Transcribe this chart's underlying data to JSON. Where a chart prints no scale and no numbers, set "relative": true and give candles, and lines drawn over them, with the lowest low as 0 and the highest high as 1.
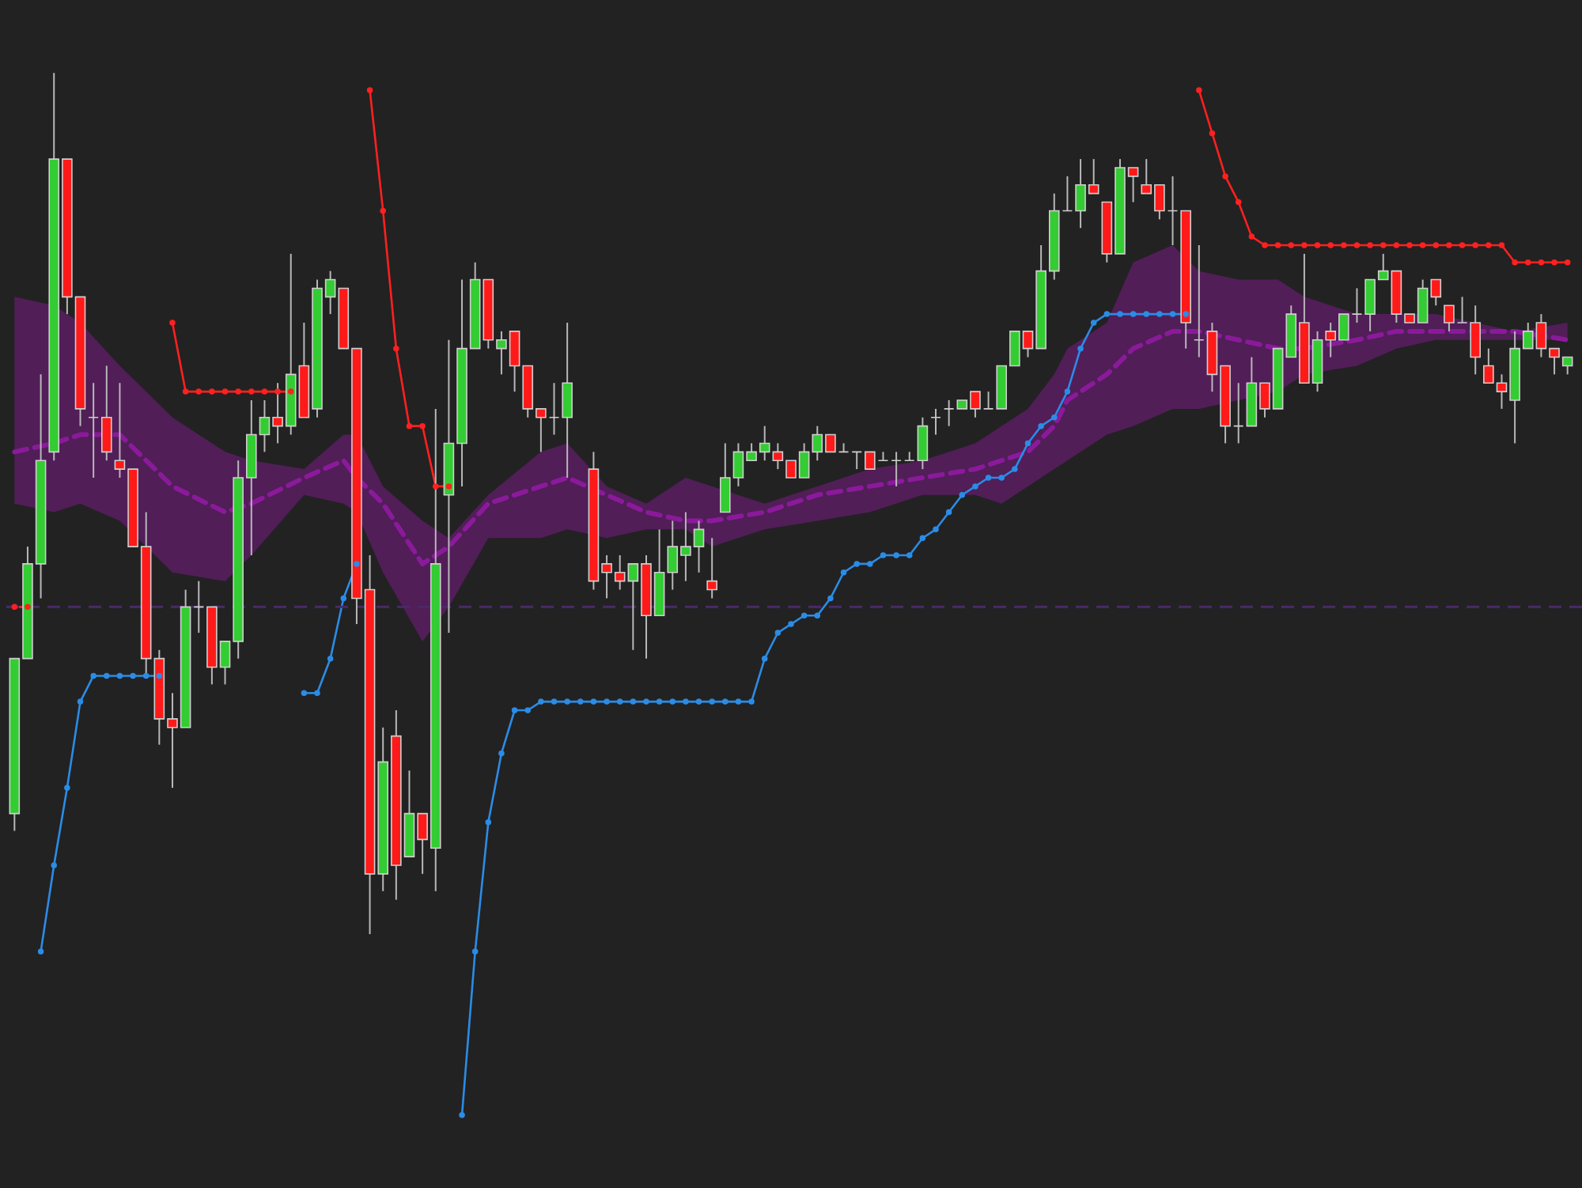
{
  "chart_data": {
    "type": "candlestick",
    "relative": true,
    "categories": [
      null,
      null,
      null,
      null,
      null,
      null,
      null,
      null,
      null,
      null,
      null,
      null,
      null,
      null,
      null,
      null,
      null,
      null,
      null,
      null,
      null,
      null,
      null,
      null,
      null,
      null,
      null,
      null,
      null,
      null,
      null,
      null,
      null,
      null,
      null,
      null,
      null,
      null,
      null,
      null,
      null,
      null,
      null,
      null,
      null,
      null,
      null,
      null,
      null,
      null,
      null,
      null,
      null,
      null,
      null,
      null,
      null,
      null,
      null,
      null,
      null,
      null,
      null,
      null,
      null,
      null,
      null,
      null,
      null,
      null,
      null,
      null,
      null,
      null,
      null,
      null,
      null,
      null,
      null,
      null,
      null,
      null,
      null,
      null,
      null,
      null,
      null,
      null,
      null,
      null,
      null,
      null,
      null,
      null,
      null,
      null,
      null,
      null,
      null,
      null,
      null,
      null,
      null,
      null,
      null,
      null,
      null,
      null,
      null,
      null,
      null,
      null,
      null,
      null,
      null,
      null,
      null,
      null,
      null
    ],
    "ohlc": [
      [
        0.14,
        0.32,
        0.12,
        0.32
      ],
      [
        0.32,
        0.45,
        0.32,
        0.43
      ],
      [
        0.43,
        0.65,
        0.39,
        0.55
      ],
      [
        0.56,
        1.0,
        0.55,
        0.9
      ],
      [
        0.9,
        0.9,
        0.72,
        0.74
      ],
      [
        0.74,
        0.74,
        0.59,
        0.61
      ],
      [
        0.6,
        0.64,
        0.53,
        0.6
      ],
      [
        0.6,
        0.66,
        0.55,
        0.56
      ],
      [
        0.55,
        0.64,
        0.53,
        0.54
      ],
      [
        0.54,
        0.54,
        0.45,
        0.45
      ],
      [
        0.45,
        0.49,
        0.3,
        0.32
      ],
      [
        0.32,
        0.33,
        0.22,
        0.25
      ],
      [
        0.25,
        0.28,
        0.17,
        0.24
      ],
      [
        0.24,
        0.4,
        0.24,
        0.38
      ],
      [
        0.38,
        0.41,
        0.35,
        0.38
      ],
      [
        0.38,
        0.38,
        0.29,
        0.31
      ],
      [
        0.31,
        0.34,
        0.29,
        0.34
      ],
      [
        0.34,
        0.55,
        0.32,
        0.53
      ],
      [
        0.53,
        0.62,
        0.44,
        0.58
      ],
      [
        0.58,
        0.62,
        0.56,
        0.6
      ],
      [
        0.6,
        0.64,
        0.57,
        0.59
      ],
      [
        0.59,
        0.79,
        0.58,
        0.65
      ],
      [
        0.66,
        0.71,
        0.6,
        0.6
      ],
      [
        0.61,
        0.76,
        0.6,
        0.75
      ],
      [
        0.74,
        0.77,
        0.72,
        0.76
      ],
      [
        0.75,
        0.75,
        0.68,
        0.68
      ],
      [
        0.68,
        0.68,
        0.36,
        0.39
      ],
      [
        0.4,
        0.44,
        0,
        0.07
      ],
      [
        0.07,
        0.24,
        0.05,
        0.2
      ],
      [
        0.23,
        0.26,
        0.04,
        0.08
      ],
      [
        0.09,
        0.19,
        0.09,
        0.14
      ],
      [
        0.14,
        0.14,
        0.07,
        0.11
      ],
      [
        0.1,
        0.61,
        0.05,
        0.43
      ],
      [
        0.51,
        0.69,
        0.35,
        0.57
      ],
      [
        0.57,
        0.76,
        0.52,
        0.68
      ],
      [
        0.68,
        0.78,
        0.68,
        0.76
      ],
      [
        0.76,
        0.76,
        0.68,
        0.69
      ],
      [
        0.68,
        0.7,
        0.65,
        0.69
      ],
      [
        0.7,
        0.7,
        0.63,
        0.66
      ],
      [
        0.66,
        0.66,
        0.6,
        0.61
      ],
      [
        0.61,
        0.61,
        0.56,
        0.6
      ],
      [
        0.6,
        0.64,
        0.58,
        0.6
      ],
      [
        0.6,
        0.71,
        0.53,
        0.64
      ],
      null,
      [
        0.54,
        0.56,
        0.4,
        0.41
      ],
      [
        0.43,
        0.44,
        0.39,
        0.42
      ],
      [
        0.42,
        0.44,
        0.4,
        0.41
      ],
      [
        0.41,
        0.43,
        0.33,
        0.43
      ],
      [
        0.43,
        0.44,
        0.32,
        0.37
      ],
      [
        0.37,
        0.47,
        0.37,
        0.42
      ],
      [
        0.42,
        0.48,
        0.4,
        0.45
      ],
      [
        0.44,
        0.49,
        0.41,
        0.45
      ],
      [
        0.45,
        0.48,
        0.42,
        0.47
      ],
      [
        0.41,
        0.46,
        0.39,
        0.4
      ],
      [
        0.49,
        0.57,
        0.49,
        0.53
      ],
      [
        0.53,
        0.57,
        0.52,
        0.56
      ],
      [
        0.55,
        0.57,
        0.55,
        0.56
      ],
      [
        0.56,
        0.59,
        0.55,
        0.57
      ],
      [
        0.56,
        0.57,
        0.54,
        0.55
      ],
      [
        0.55,
        0.55,
        0.53,
        0.53
      ],
      [
        0.53,
        0.57,
        0.53,
        0.56
      ],
      [
        0.56,
        0.59,
        0.55,
        0.58
      ],
      [
        0.58,
        0.58,
        0.56,
        0.56
      ],
      [
        0.56,
        0.57,
        0.56,
        0.56
      ],
      [
        0.56,
        0.56,
        0.54,
        0.56
      ],
      [
        0.56,
        0.56,
        0.54,
        0.54
      ],
      [
        0.55,
        0.56,
        0.55,
        0.55
      ],
      [
        0.55,
        0.56,
        0.52,
        0.55
      ],
      [
        0.55,
        0.56,
        0.55,
        0.55
      ],
      [
        0.55,
        0.6,
        0.54,
        0.59
      ],
      [
        0.6,
        0.61,
        0.58,
        0.6
      ],
      [
        0.61,
        0.62,
        0.59,
        0.61
      ],
      [
        0.61,
        0.62,
        0.61,
        0.62
      ],
      [
        0.63,
        0.63,
        0.6,
        0.61
      ],
      [
        0.61,
        0.63,
        0.61,
        0.61
      ],
      [
        0.61,
        0.66,
        0.61,
        0.66
      ],
      [
        0.66,
        0.7,
        0.66,
        0.7
      ],
      [
        0.7,
        0.7,
        0.67,
        0.68
      ],
      [
        0.68,
        0.8,
        0.68,
        0.77
      ],
      [
        0.77,
        0.86,
        0.76,
        0.84
      ],
      [
        0.84,
        0.88,
        0.84,
        0.84
      ],
      [
        0.84,
        0.9,
        0.82,
        0.87
      ],
      [
        0.87,
        0.9,
        0.86,
        0.86
      ],
      [
        0.85,
        0.85,
        0.78,
        0.79
      ],
      [
        0.79,
        0.9,
        0.79,
        0.89
      ],
      [
        0.89,
        0.89,
        0.85,
        0.88
      ],
      [
        0.87,
        0.9,
        0.86,
        0.86
      ],
      [
        0.87,
        0.87,
        0.83,
        0.84
      ],
      [
        0.84,
        0.88,
        0.8,
        0.84
      ],
      [
        0.84,
        0.84,
        0.68,
        0.71
      ],
      [
        0.69,
        0.8,
        0.67,
        0.69
      ],
      [
        0.7,
        0.71,
        0.63,
        0.65
      ],
      [
        0.66,
        0.66,
        0.57,
        0.59
      ],
      [
        0.59,
        0.64,
        0.57,
        0.59
      ],
      [
        0.59,
        0.67,
        0.59,
        0.64
      ],
      [
        0.64,
        0.64,
        0.6,
        0.61
      ],
      [
        0.61,
        0.68,
        0.61,
        0.68
      ],
      [
        0.67,
        0.73,
        0.67,
        0.72
      ],
      [
        0.71,
        0.79,
        0.64,
        0.64
      ],
      [
        0.64,
        0.7,
        0.63,
        0.69
      ],
      [
        0.7,
        0.71,
        0.67,
        0.69
      ],
      [
        0.69,
        0.72,
        0.69,
        0.72
      ],
      [
        0.72,
        0.75,
        0.71,
        0.72
      ],
      [
        0.72,
        0.76,
        0.7,
        0.76
      ],
      [
        0.76,
        0.79,
        0.76,
        0.77
      ],
      [
        0.77,
        0.77,
        0.71,
        0.72
      ],
      [
        0.72,
        0.72,
        0.71,
        0.71
      ],
      [
        0.71,
        0.76,
        0.71,
        0.75
      ],
      [
        0.76,
        0.76,
        0.73,
        0.74
      ],
      [
        0.73,
        0.73,
        0.7,
        0.71
      ],
      [
        0.71,
        0.74,
        0.71,
        0.71
      ],
      [
        0.71,
        0.73,
        0.65,
        0.67
      ],
      [
        0.66,
        0.68,
        0.64,
        0.64
      ],
      [
        0.64,
        0.65,
        0.61,
        0.63
      ],
      [
        0.62,
        0.7,
        0.57,
        0.68
      ],
      [
        0.68,
        0.71,
        0.68,
        0.7
      ],
      [
        0.71,
        0.72,
        0.67,
        0.68
      ],
      [
        0.68,
        0.68,
        0.65,
        0.67
      ],
      [
        0.66,
        0.67,
        0.65,
        0.67
      ]
    ],
    "series": [
      {
        "type": "line",
        "color": "#8b1a9b",
        "line_style": "dashed",
        "marker": "none",
        "values": [
          0.56,
          null,
          null,
          0.57,
          null,
          0.58,
          null,
          null,
          0.58,
          null,
          0.55,
          null,
          0.52,
          null,
          null,
          null,
          0.49,
          null,
          0.5,
          null,
          null,
          null,
          0.53,
          null,
          null,
          0.55,
          0.53,
          null,
          0.5,
          null,
          null,
          0.43,
          null,
          0.45,
          null,
          null,
          0.5,
          null,
          null,
          null,
          0.52,
          null,
          0.53,
          null,
          null,
          0.51,
          null,
          null,
          0.49,
          null,
          null,
          0.48,
          null,
          0.48,
          null,
          null,
          null,
          0.49,
          null,
          null,
          null,
          0.51,
          null,
          null,
          null,
          0.52,
          null,
          null,
          null,
          0.53,
          null,
          null,
          null,
          0.54,
          null,
          0.55,
          null,
          0.56,
          null,
          0.59,
          0.62,
          null,
          null,
          0.65,
          null,
          0.68,
          null,
          null,
          0.7,
          null,
          0.7,
          null,
          null,
          0.69,
          null,
          null,
          0.68,
          null,
          0.68,
          null,
          null,
          null,
          0.69,
          null,
          null,
          0.7,
          null,
          null,
          0.7,
          null,
          null,
          0.7,
          null,
          null,
          0.7,
          null,
          null,
          null,
          0.69
        ],
        "lower": [
          0.5,
          null,
          null,
          0.49,
          null,
          0.5,
          null,
          null,
          0.48,
          null,
          0.45,
          null,
          0.42,
          null,
          null,
          null,
          0.41,
          null,
          0.44,
          null,
          null,
          null,
          0.51,
          null,
          null,
          0.5,
          0.49,
          null,
          0.42,
          null,
          null,
          0.34,
          null,
          0.38,
          null,
          null,
          0.46,
          null,
          null,
          null,
          0.46,
          null,
          0.47,
          null,
          null,
          0.46,
          null,
          null,
          0.47,
          null,
          null,
          0.47,
          null,
          0.45,
          null,
          null,
          null,
          0.47,
          null,
          null,
          null,
          0.48,
          null,
          null,
          null,
          0.49,
          null,
          null,
          null,
          0.51,
          null,
          null,
          null,
          0.51,
          null,
          0.5,
          null,
          0.52,
          null,
          0.54,
          0.55,
          null,
          null,
          0.58,
          null,
          0.59,
          null,
          null,
          0.61,
          null,
          0.61,
          null,
          null,
          0.62,
          null,
          null,
          0.63,
          null,
          0.65,
          null,
          null,
          null,
          0.66,
          null,
          null,
          0.68,
          null,
          null,
          0.69,
          null,
          null,
          0.69,
          null,
          null,
          0.69,
          null,
          null,
          null,
          0.69
        ],
        "upper": [
          0.74,
          null,
          null,
          0.73,
          null,
          0.71,
          null,
          null,
          0.66,
          null,
          0.63,
          null,
          0.6,
          null,
          null,
          null,
          0.56,
          null,
          0.55,
          null,
          null,
          null,
          0.54,
          null,
          null,
          0.58,
          0.58,
          null,
          0.52,
          null,
          null,
          0.48,
          null,
          0.46,
          null,
          null,
          0.51,
          null,
          null,
          null,
          0.56,
          null,
          0.57,
          null,
          null,
          0.52,
          null,
          null,
          0.5,
          null,
          null,
          0.53,
          null,
          0.52,
          null,
          null,
          null,
          0.5,
          null,
          null,
          null,
          0.52,
          null,
          null,
          null,
          0.54,
          null,
          null,
          null,
          0.55,
          null,
          null,
          null,
          0.57,
          null,
          0.59,
          null,
          0.61,
          null,
          0.65,
          0.68,
          null,
          null,
          0.71,
          null,
          0.78,
          null,
          null,
          0.8,
          null,
          0.77,
          null,
          null,
          0.76,
          null,
          null,
          0.76,
          null,
          0.74,
          null,
          null,
          null,
          0.72,
          null,
          null,
          0.72,
          null,
          null,
          0.72,
          null,
          null,
          0.71,
          null,
          null,
          0.7,
          null,
          null,
          null,
          0.71
        ]
      },
      {
        "type": "line",
        "color": "#ff2020",
        "marker": "circle",
        "values": [
          0.38,
          0.38,
          null,
          null,
          null,
          null,
          null,
          null,
          null,
          null,
          null,
          null,
          null,
          null,
          null,
          null,
          null,
          null,
          null,
          null,
          null,
          null,
          null,
          null,
          null,
          null,
          null,
          null,
          null,
          null,
          null,
          null,
          null,
          null,
          null,
          null,
          null,
          null,
          null,
          null,
          null,
          null,
          null,
          null,
          null,
          null,
          null,
          null,
          null,
          null,
          null,
          null,
          null,
          null,
          null,
          null,
          null,
          null,
          null,
          null,
          null,
          null,
          null,
          null,
          null,
          null,
          null,
          null,
          null,
          null,
          null,
          null,
          null,
          null,
          null,
          null,
          null,
          null,
          null,
          null,
          null,
          null,
          null,
          null,
          null,
          null,
          null,
          null,
          null,
          null,
          null,
          null,
          null,
          null,
          null,
          null,
          null,
          null,
          null,
          null,
          null,
          null,
          null,
          null,
          null,
          null,
          null,
          null,
          null,
          null,
          null,
          null,
          null,
          null,
          null,
          null,
          null,
          null,
          null
        ]
      },
      {
        "type": "line",
        "color": "#ff2020",
        "marker": "circle",
        "values": [
          null,
          null,
          null,
          null,
          null,
          null,
          null,
          null,
          null,
          null,
          null,
          null,
          0.71,
          0.63,
          0.63,
          0.63,
          0.63,
          0.63,
          0.63,
          0.63,
          0.63,
          0.63,
          null,
          null,
          null,
          null,
          null,
          null,
          null,
          null,
          null,
          null,
          null,
          null,
          null,
          null,
          null,
          null,
          null,
          null,
          null,
          null,
          null,
          null,
          null,
          null,
          null,
          null,
          null,
          null,
          null,
          null,
          null,
          null,
          null,
          null,
          null,
          null,
          null,
          null,
          null,
          null,
          null,
          null,
          null,
          null,
          null,
          null,
          null,
          null,
          null,
          null,
          null,
          null,
          null,
          null,
          null,
          null,
          null,
          null,
          null,
          null,
          null,
          null,
          null,
          null,
          null,
          null,
          null,
          null,
          null,
          null,
          null,
          null,
          null,
          null,
          null,
          null,
          null,
          null,
          null,
          null,
          null,
          null,
          null,
          null,
          null,
          null,
          null,
          null,
          null,
          null,
          null,
          null,
          null,
          null,
          null,
          null,
          null
        ]
      },
      {
        "type": "line",
        "color": "#ff2020",
        "marker": "circle",
        "values": [
          null,
          null,
          null,
          null,
          null,
          null,
          null,
          null,
          null,
          null,
          null,
          null,
          null,
          null,
          null,
          null,
          null,
          null,
          null,
          null,
          null,
          null,
          null,
          null,
          null,
          null,
          null,
          0.98,
          0.84,
          0.68,
          0.59,
          0.59,
          0.52,
          0.52,
          null,
          null,
          null,
          null,
          null,
          null,
          null,
          null,
          null,
          null,
          null,
          null,
          null,
          null,
          null,
          null,
          null,
          null,
          null,
          null,
          null,
          null,
          null,
          null,
          null,
          null,
          null,
          null,
          null,
          null,
          null,
          null,
          null,
          null,
          null,
          null,
          null,
          null,
          null,
          null,
          null,
          null,
          null,
          null,
          null,
          null,
          null,
          null,
          null,
          null,
          null,
          null,
          null,
          null,
          null,
          null,
          null,
          null,
          null,
          null,
          null,
          null,
          null,
          null,
          null,
          null,
          null,
          null,
          null,
          null,
          null,
          null,
          null,
          null,
          null,
          null,
          null,
          null,
          null,
          null,
          null,
          null,
          null,
          null,
          null
        ]
      },
      {
        "type": "line",
        "color": "#ff2020",
        "marker": "circle",
        "values": [
          null,
          null,
          null,
          null,
          null,
          null,
          null,
          null,
          null,
          null,
          null,
          null,
          null,
          null,
          null,
          null,
          null,
          null,
          null,
          null,
          null,
          null,
          null,
          null,
          null,
          null,
          null,
          null,
          null,
          null,
          null,
          null,
          null,
          null,
          null,
          null,
          null,
          null,
          null,
          null,
          null,
          null,
          null,
          null,
          null,
          null,
          null,
          null,
          null,
          null,
          null,
          null,
          null,
          null,
          null,
          null,
          null,
          null,
          null,
          null,
          null,
          null,
          null,
          null,
          null,
          null,
          null,
          null,
          null,
          null,
          null,
          null,
          null,
          null,
          null,
          null,
          null,
          null,
          null,
          null,
          null,
          null,
          null,
          null,
          null,
          null,
          null,
          null,
          null,
          null,
          0.98,
          0.93,
          0.88,
          0.85,
          0.81,
          0.8,
          0.8,
          0.8,
          0.8,
          0.8,
          0.8,
          0.8,
          0.8,
          0.8,
          0.8,
          0.8,
          0.8,
          0.8,
          0.8,
          0.8,
          0.8,
          0.8,
          0.8,
          0.8,
          0.78,
          0.78,
          0.78,
          0.78,
          0.78
        ]
      },
      {
        "type": "line",
        "color": "#2b8ce6",
        "marker": "circle",
        "values": [
          null,
          null,
          -0.02,
          0.08,
          0.17,
          0.27,
          0.3,
          0.3,
          0.3,
          0.3,
          0.3,
          0.3,
          null,
          null,
          null,
          null,
          null,
          null,
          null,
          null,
          null,
          null,
          null,
          null,
          null,
          null,
          null,
          null,
          null,
          null,
          null,
          null,
          null,
          null,
          null,
          null,
          null,
          null,
          null,
          null,
          null,
          null,
          null,
          null,
          null,
          null,
          null,
          null,
          null,
          null,
          null,
          null,
          null,
          null,
          null,
          null,
          null,
          null,
          null,
          null,
          null,
          null,
          null,
          null,
          null,
          null,
          null,
          null,
          null,
          null,
          null,
          null,
          null,
          null,
          null,
          null,
          null,
          null,
          null,
          null,
          null,
          null,
          null,
          null,
          null,
          null,
          null,
          null,
          null,
          null,
          null,
          null,
          null,
          null,
          null,
          null,
          null,
          null,
          null,
          null,
          null,
          null,
          null,
          null,
          null,
          null,
          null,
          null,
          null,
          null,
          null,
          null,
          null,
          null,
          null,
          null,
          null,
          null,
          null
        ]
      },
      {
        "type": "line",
        "color": "#2b8ce6",
        "marker": "circle",
        "values": [
          null,
          null,
          null,
          null,
          null,
          null,
          null,
          null,
          null,
          null,
          null,
          null,
          null,
          null,
          null,
          null,
          null,
          null,
          null,
          null,
          null,
          null,
          0.28,
          0.28,
          0.32,
          0.39,
          0.43,
          null,
          null,
          null,
          null,
          null,
          null,
          null,
          null,
          null,
          null,
          null,
          null,
          null,
          null,
          null,
          null,
          null,
          null,
          null,
          null,
          null,
          null,
          null,
          null,
          null,
          null,
          null,
          null,
          null,
          null,
          null,
          null,
          null,
          null,
          null,
          null,
          null,
          null,
          null,
          null,
          null,
          null,
          null,
          null,
          null,
          null,
          null,
          null,
          null,
          null,
          null,
          null,
          null,
          null,
          null,
          null,
          null,
          null,
          null,
          null,
          null,
          null,
          null,
          null,
          null,
          null,
          null,
          null,
          null,
          null,
          null,
          null,
          null,
          null,
          null,
          null,
          null,
          null,
          null,
          null,
          null,
          null,
          null,
          null,
          null,
          null,
          null,
          null,
          null,
          null,
          null,
          null
        ]
      },
      {
        "type": "line",
        "color": "#2b8ce6",
        "marker": "circle",
        "values": [
          null,
          null,
          null,
          null,
          null,
          null,
          null,
          null,
          null,
          null,
          null,
          null,
          null,
          null,
          null,
          null,
          null,
          null,
          null,
          null,
          null,
          null,
          null,
          null,
          null,
          null,
          null,
          null,
          null,
          null,
          null,
          null,
          null,
          null,
          -0.21,
          -0.02,
          0.13,
          0.21,
          0.26,
          0.26,
          0.27,
          0.27,
          0.27,
          0.27,
          0.27,
          0.27,
          0.27,
          0.27,
          0.27,
          0.27,
          0.27,
          0.27,
          0.27,
          0.27,
          0.27,
          0.27,
          0.27,
          0.32,
          0.35,
          0.36,
          0.37,
          0.37,
          0.39,
          0.42,
          0.43,
          0.43,
          0.44,
          0.44,
          0.44,
          0.46,
          0.47,
          0.49,
          0.51,
          0.52,
          0.53,
          0.53,
          0.54,
          0.57,
          0.59,
          0.6,
          0.63,
          0.68,
          0.71,
          0.72,
          0.72,
          0.72,
          0.72,
          0.72,
          0.72,
          0.72,
          null,
          null,
          null,
          null,
          null,
          null,
          null,
          null,
          null,
          null,
          null,
          null,
          null,
          null,
          null,
          null,
          null,
          null,
          null,
          null,
          null,
          null,
          null,
          null,
          null,
          null,
          null,
          null,
          null
        ]
      }
    ],
    "ref_lines": [
      {
        "axis": "y",
        "value": 0.38,
        "color": "#4a2a6a",
        "line_style": "dashed"
      }
    ]
  }
}
